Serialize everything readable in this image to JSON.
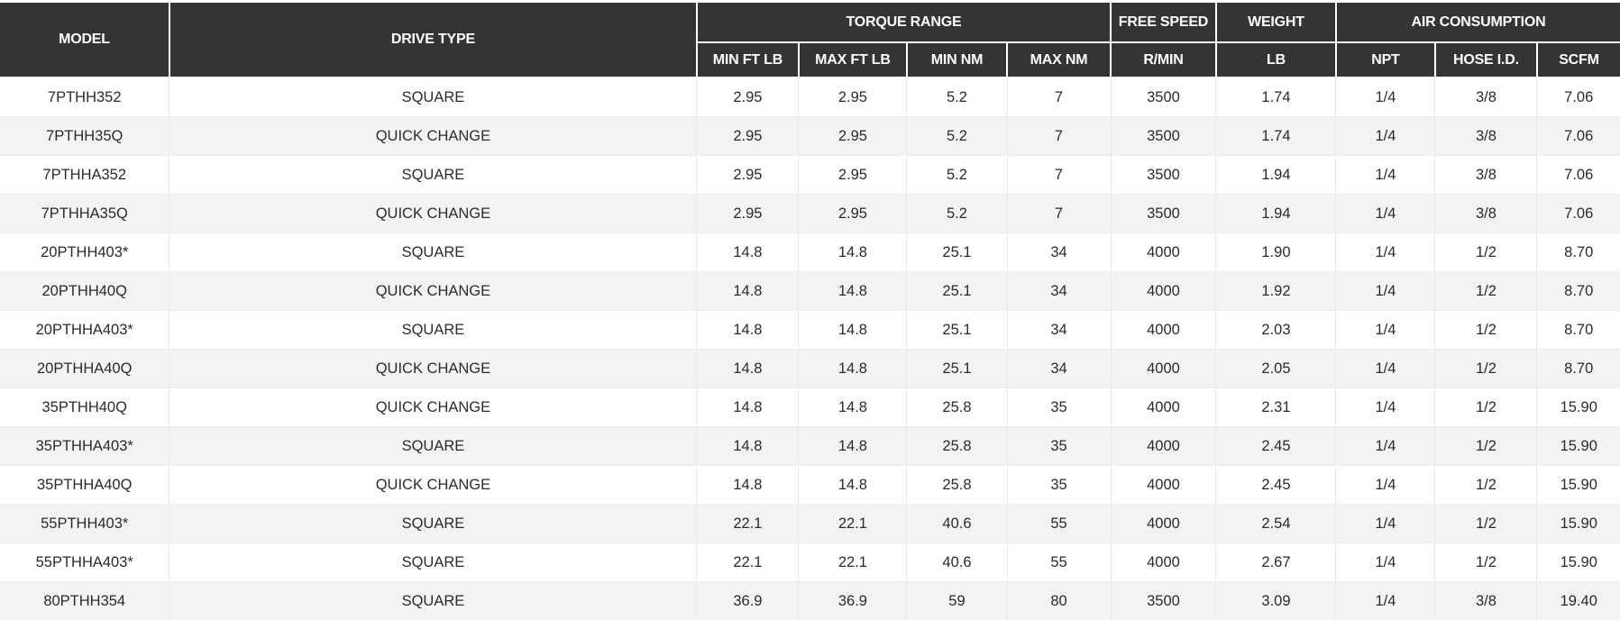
{
  "table": {
    "header": {
      "model": "MODEL",
      "drive_type": "DRIVE TYPE",
      "groups": {
        "torque_range": "TORQUE RANGE",
        "free_speed": "FREE SPEED",
        "weight": "WEIGHT",
        "air_consumption": "AIR CONSUMPTION"
      },
      "subcolumns": {
        "min_ft_lb": "MIN FT LB",
        "max_ft_lb": "MAX FT LB",
        "min_nm": "MIN NM",
        "max_nm": "MAX NM",
        "r_min": "R/MIN",
        "lb": "LB",
        "npt": "NPT",
        "hose_id": "HOSE I.D.",
        "scfm": "SCFM"
      }
    },
    "rows": [
      [
        "7PTHH352",
        "SQUARE",
        "2.95",
        "2.95",
        "5.2",
        "7",
        "3500",
        "1.74",
        "1/4",
        "3/8",
        "7.06"
      ],
      [
        "7PTHH35Q",
        "QUICK CHANGE",
        "2.95",
        "2.95",
        "5.2",
        "7",
        "3500",
        "1.74",
        "1/4",
        "3/8",
        "7.06"
      ],
      [
        "7PTHHA352",
        "SQUARE",
        "2.95",
        "2.95",
        "5.2",
        "7",
        "3500",
        "1.94",
        "1/4",
        "3/8",
        "7.06"
      ],
      [
        "7PTHHA35Q",
        "QUICK CHANGE",
        "2.95",
        "2.95",
        "5.2",
        "7",
        "3500",
        "1.94",
        "1/4",
        "3/8",
        "7.06"
      ],
      [
        "20PTHH403*",
        "SQUARE",
        "14.8",
        "14.8",
        "25.1",
        "34",
        "4000",
        "1.90",
        "1/4",
        "1/2",
        "8.70"
      ],
      [
        "20PTHH40Q",
        "QUICK CHANGE",
        "14.8",
        "14.8",
        "25.1",
        "34",
        "4000",
        "1.92",
        "1/4",
        "1/2",
        "8.70"
      ],
      [
        "20PTHHA403*",
        "SQUARE",
        "14.8",
        "14.8",
        "25.1",
        "34",
        "4000",
        "2.03",
        "1/4",
        "1/2",
        "8.70"
      ],
      [
        "20PTHHA40Q",
        "QUICK CHANGE",
        "14.8",
        "14.8",
        "25.1",
        "34",
        "4000",
        "2.05",
        "1/4",
        "1/2",
        "8.70"
      ],
      [
        "35PTHH40Q",
        "QUICK CHANGE",
        "14.8",
        "14.8",
        "25.8",
        "35",
        "4000",
        "2.31",
        "1/4",
        "1/2",
        "15.90"
      ],
      [
        "35PTHHA403*",
        "SQUARE",
        "14.8",
        "14.8",
        "25.8",
        "35",
        "4000",
        "2.45",
        "1/4",
        "1/2",
        "15.90"
      ],
      [
        "35PTHHA40Q",
        "QUICK CHANGE",
        "14.8",
        "14.8",
        "25.8",
        "35",
        "4000",
        "2.45",
        "1/4",
        "1/2",
        "15.90"
      ],
      [
        "55PTHH403*",
        "SQUARE",
        "22.1",
        "22.1",
        "40.6",
        "55",
        "4000",
        "2.54",
        "1/4",
        "1/2",
        "15.90"
      ],
      [
        "55PTHHA403*",
        "SQUARE",
        "22.1",
        "22.1",
        "40.6",
        "55",
        "4000",
        "2.67",
        "1/4",
        "1/2",
        "15.90"
      ],
      [
        "80PTHH354",
        "SQUARE",
        "36.9",
        "36.9",
        "59",
        "80",
        "3500",
        "3.09",
        "1/4",
        "3/8",
        "19.40"
      ]
    ]
  },
  "colors": {
    "header_bg": "#333436",
    "header_text": "#ffffff",
    "row_alt_bg": "#f1f3f4",
    "body_text": "#2b2b2b",
    "grid_line": "#e7e9ea"
  }
}
